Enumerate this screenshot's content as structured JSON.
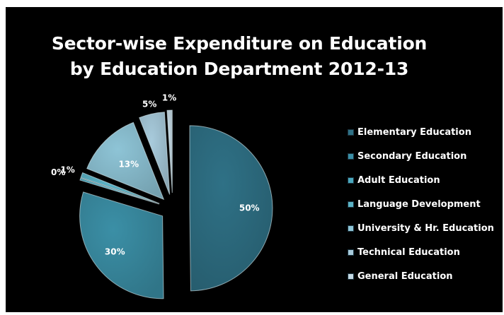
{
  "chart_data": {
    "type": "pie",
    "title_lines": [
      "Sector-wise Expenditure on Education",
      "by Education Department 2012-13"
    ],
    "slices": [
      {
        "label": "Elementary Education",
        "value": 50,
        "display": "50%",
        "color": "#2f7186"
      },
      {
        "label": "Secondary Education",
        "value": 30,
        "display": "30%",
        "color": "#3b8fa6"
      },
      {
        "label": "Adult Education",
        "value": 0.4,
        "display": "0%",
        "color": "#4aa7bd"
      },
      {
        "label": "Language Development",
        "value": 1,
        "display": "1%",
        "color": "#5cb3c6"
      },
      {
        "label": "University & Hr. Education",
        "value": 13,
        "display": "13%",
        "color": "#8ec4d6"
      },
      {
        "label": "Technical Education",
        "value": 5,
        "display": "5%",
        "color": "#a8cbdc"
      },
      {
        "label": "General Education",
        "value": 1,
        "display": "1%",
        "color": "#c3d8e3"
      }
    ],
    "legend_position": "right",
    "exploded": true
  }
}
